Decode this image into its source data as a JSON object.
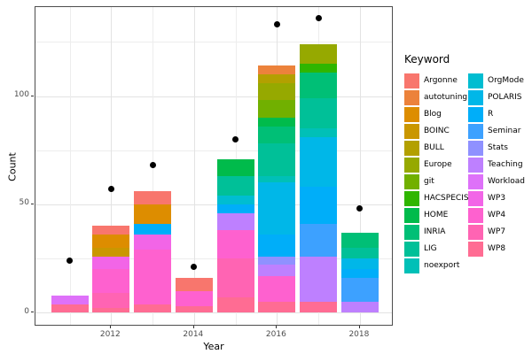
{
  "chart_data": {
    "type": "bar",
    "mode": "stacked-with-points",
    "title": "",
    "xlabel": "Year",
    "ylabel": "Count",
    "legend_title": "Keyword",
    "x_ticks": [
      2012,
      2014,
      2016,
      2018
    ],
    "x_tick_labels": [
      "2012",
      "2014",
      "2016",
      "2018"
    ],
    "x_minor": [
      2011,
      2013,
      2015,
      2017
    ],
    "y_ticks": [
      0,
      50,
      100
    ],
    "y_tick_labels": [
      "0",
      "50",
      "100"
    ],
    "y_minor": [
      25,
      75,
      125
    ],
    "ylim": [
      -7,
      141
    ],
    "xlim": [
      2010.2,
      2018.8
    ],
    "grid": true,
    "legend_position": "right",
    "point_series_note": "black dots = total entries per year",
    "keywords": [
      {
        "name": "Argonne",
        "color": "#F8766D"
      },
      {
        "name": "autotuning",
        "color": "#EC823B"
      },
      {
        "name": "Blog",
        "color": "#DD8D00"
      },
      {
        "name": "BOINC",
        "color": "#CA9700"
      },
      {
        "name": "BULL",
        "color": "#B3A000"
      },
      {
        "name": "Europe",
        "color": "#96A900"
      },
      {
        "name": "git",
        "color": "#71B000"
      },
      {
        "name": "HACSPECIS",
        "color": "#2FB600"
      },
      {
        "name": "HOME",
        "color": "#00BB4B"
      },
      {
        "name": "INRIA",
        "color": "#00BF76"
      },
      {
        "name": "LIG",
        "color": "#00C098"
      },
      {
        "name": "noexport",
        "color": "#00C0B7"
      },
      {
        "name": "OrgMode",
        "color": "#00BDD1"
      },
      {
        "name": "POLARIS",
        "color": "#00B7E8"
      },
      {
        "name": "R",
        "color": "#00AEF9"
      },
      {
        "name": "Seminar",
        "color": "#3DA1FF"
      },
      {
        "name": "Stats",
        "color": "#8F91FF"
      },
      {
        "name": "Teaching",
        "color": "#BE80FF"
      },
      {
        "name": "Workload",
        "color": "#DE71F9"
      },
      {
        "name": "WP3",
        "color": "#F265E7"
      },
      {
        "name": "WP4",
        "color": "#FE61CF"
      },
      {
        "name": "WP7",
        "color": "#FF64B3"
      },
      {
        "name": "WP8",
        "color": "#FF6C93"
      }
    ],
    "years": [
      {
        "year": 2011,
        "total": 8,
        "point": 24,
        "segments": [
          {
            "keyword": "WP8",
            "value": 4
          },
          {
            "keyword": "Workload",
            "value": 4
          }
        ]
      },
      {
        "year": 2012,
        "total": 40,
        "point": 57,
        "segments": [
          {
            "keyword": "WP8",
            "value": 2
          },
          {
            "keyword": "WP7",
            "value": 7
          },
          {
            "keyword": "WP4",
            "value": 11
          },
          {
            "keyword": "WP3",
            "value": 6
          },
          {
            "keyword": "BOINC",
            "value": 4
          },
          {
            "keyword": "Blog",
            "value": 6
          },
          {
            "keyword": "Argonne",
            "value": 4
          }
        ]
      },
      {
        "year": 2013,
        "total": 56,
        "point": 68,
        "segments": [
          {
            "keyword": "WP8",
            "value": 4
          },
          {
            "keyword": "WP4",
            "value": 25
          },
          {
            "keyword": "WP3",
            "value": 7
          },
          {
            "keyword": "R",
            "value": 5
          },
          {
            "keyword": "Blog",
            "value": 9
          },
          {
            "keyword": "Argonne",
            "value": 6
          }
        ]
      },
      {
        "year": 2014,
        "total": 16,
        "point": 21,
        "segments": [
          {
            "keyword": "WP8",
            "value": 3
          },
          {
            "keyword": "WP4",
            "value": 7
          },
          {
            "keyword": "Argonne",
            "value": 6
          }
        ]
      },
      {
        "year": 2015,
        "total": 71,
        "point": 80,
        "segments": [
          {
            "keyword": "WP8",
            "value": 7
          },
          {
            "keyword": "WP7",
            "value": 18
          },
          {
            "keyword": "WP4",
            "value": 13
          },
          {
            "keyword": "Teaching",
            "value": 8
          },
          {
            "keyword": "R",
            "value": 4
          },
          {
            "keyword": "OrgMode",
            "value": 4
          },
          {
            "keyword": "LIG",
            "value": 9
          },
          {
            "keyword": "HOME",
            "value": 8
          }
        ]
      },
      {
        "year": 2016,
        "total": 114,
        "point": 133,
        "segments": [
          {
            "keyword": "WP8",
            "value": 5
          },
          {
            "keyword": "WP4",
            "value": 12
          },
          {
            "keyword": "Teaching",
            "value": 5
          },
          {
            "keyword": "Stats",
            "value": 4
          },
          {
            "keyword": "R",
            "value": 10
          },
          {
            "keyword": "POLARIS",
            "value": 24
          },
          {
            "keyword": "noexport",
            "value": 3
          },
          {
            "keyword": "LIG",
            "value": 15
          },
          {
            "keyword": "INRIA",
            "value": 8
          },
          {
            "keyword": "HOME",
            "value": 4
          },
          {
            "keyword": "git",
            "value": 8
          },
          {
            "keyword": "Europe",
            "value": 8
          },
          {
            "keyword": "BULL",
            "value": 4
          },
          {
            "keyword": "autotuning",
            "value": 4
          }
        ]
      },
      {
        "year": 2017,
        "total": 124,
        "point": 136,
        "segments": [
          {
            "keyword": "WP8",
            "value": 5
          },
          {
            "keyword": "Teaching",
            "value": 21
          },
          {
            "keyword": "Seminar",
            "value": 15
          },
          {
            "keyword": "R",
            "value": 17
          },
          {
            "keyword": "POLARIS",
            "value": 23
          },
          {
            "keyword": "noexport",
            "value": 4
          },
          {
            "keyword": "LIG",
            "value": 14
          },
          {
            "keyword": "INRIA",
            "value": 12
          },
          {
            "keyword": "HACSPECIS",
            "value": 4
          },
          {
            "keyword": "Europe",
            "value": 9
          }
        ]
      },
      {
        "year": 2018,
        "total": 37,
        "point": 48,
        "segments": [
          {
            "keyword": "Teaching",
            "value": 5
          },
          {
            "keyword": "Seminar",
            "value": 11
          },
          {
            "keyword": "R",
            "value": 4
          },
          {
            "keyword": "POLARIS",
            "value": 5
          },
          {
            "keyword": "LIG",
            "value": 5
          },
          {
            "keyword": "INRIA",
            "value": 7
          }
        ]
      }
    ]
  }
}
